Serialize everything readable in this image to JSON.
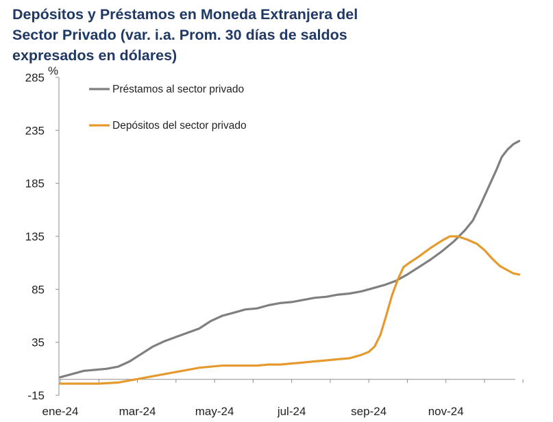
{
  "chart_data": {
    "type": "line",
    "title_lines": [
      "Depósitos y Préstamos en Moneda Extranjera del",
      "Sector Privado (var. i.a. Prom. 30 días de saldos",
      "expresados en dólares)"
    ],
    "unit_label": "%",
    "ylim": [
      -15,
      285
    ],
    "y_ticks": [
      -15,
      35,
      85,
      135,
      185,
      235,
      285
    ],
    "x_tick_labels": [
      "ene-24",
      "mar-24",
      "may-24",
      "jul-24",
      "sep-24",
      "nov-24"
    ],
    "x_tick_positions": [
      0,
      2,
      4,
      6,
      8,
      10
    ],
    "xlim": [
      0,
      11.8
    ],
    "legend_position": "top-left",
    "series": [
      {
        "name": "Préstamos al sector privado",
        "color": "#7f7f7f",
        "points": [
          [
            0.0,
            2
          ],
          [
            0.3,
            5
          ],
          [
            0.6,
            8
          ],
          [
            0.9,
            9
          ],
          [
            1.2,
            10
          ],
          [
            1.5,
            12
          ],
          [
            1.8,
            17
          ],
          [
            2.1,
            24
          ],
          [
            2.4,
            31
          ],
          [
            2.7,
            36
          ],
          [
            3.0,
            40
          ],
          [
            3.3,
            44
          ],
          [
            3.6,
            48
          ],
          [
            3.9,
            55
          ],
          [
            4.2,
            60
          ],
          [
            4.5,
            63
          ],
          [
            4.8,
            66
          ],
          [
            5.1,
            67
          ],
          [
            5.4,
            70
          ],
          [
            5.7,
            72
          ],
          [
            6.0,
            73
          ],
          [
            6.3,
            75
          ],
          [
            6.6,
            77
          ],
          [
            6.9,
            78
          ],
          [
            7.2,
            80
          ],
          [
            7.5,
            81
          ],
          [
            7.8,
            83
          ],
          [
            8.1,
            86
          ],
          [
            8.4,
            89
          ],
          [
            8.7,
            93
          ],
          [
            9.0,
            99
          ],
          [
            9.3,
            106
          ],
          [
            9.6,
            113
          ],
          [
            9.9,
            121
          ],
          [
            10.2,
            130
          ],
          [
            10.5,
            141
          ],
          [
            10.7,
            150
          ],
          [
            10.9,
            165
          ],
          [
            11.1,
            181
          ],
          [
            11.3,
            197
          ],
          [
            11.45,
            210
          ],
          [
            11.6,
            217
          ],
          [
            11.75,
            222
          ],
          [
            11.9,
            225
          ]
        ]
      },
      {
        "name": "Depósitos del sector privado",
        "color": "#e69a2e",
        "points": [
          [
            0.0,
            -4
          ],
          [
            0.5,
            -4
          ],
          [
            1.0,
            -4
          ],
          [
            1.5,
            -3
          ],
          [
            1.8,
            -1
          ],
          [
            2.1,
            1
          ],
          [
            2.4,
            3
          ],
          [
            2.7,
            5
          ],
          [
            3.0,
            7
          ],
          [
            3.3,
            9
          ],
          [
            3.6,
            11
          ],
          [
            3.9,
            12
          ],
          [
            4.2,
            13
          ],
          [
            4.5,
            13
          ],
          [
            4.8,
            13
          ],
          [
            5.1,
            13
          ],
          [
            5.4,
            14
          ],
          [
            5.7,
            14
          ],
          [
            6.0,
            15
          ],
          [
            6.3,
            16
          ],
          [
            6.6,
            17
          ],
          [
            6.9,
            18
          ],
          [
            7.2,
            19
          ],
          [
            7.5,
            20
          ],
          [
            7.8,
            23
          ],
          [
            8.0,
            26
          ],
          [
            8.15,
            31
          ],
          [
            8.3,
            42
          ],
          [
            8.45,
            60
          ],
          [
            8.6,
            79
          ],
          [
            8.75,
            94
          ],
          [
            8.9,
            106
          ],
          [
            9.05,
            110
          ],
          [
            9.3,
            116
          ],
          [
            9.6,
            124
          ],
          [
            9.9,
            131
          ],
          [
            10.1,
            135
          ],
          [
            10.3,
            135
          ],
          [
            10.55,
            132
          ],
          [
            10.8,
            128
          ],
          [
            11.0,
            122
          ],
          [
            11.2,
            114
          ],
          [
            11.4,
            107
          ],
          [
            11.6,
            103
          ],
          [
            11.75,
            100
          ],
          [
            11.9,
            99
          ]
        ]
      }
    ]
  }
}
